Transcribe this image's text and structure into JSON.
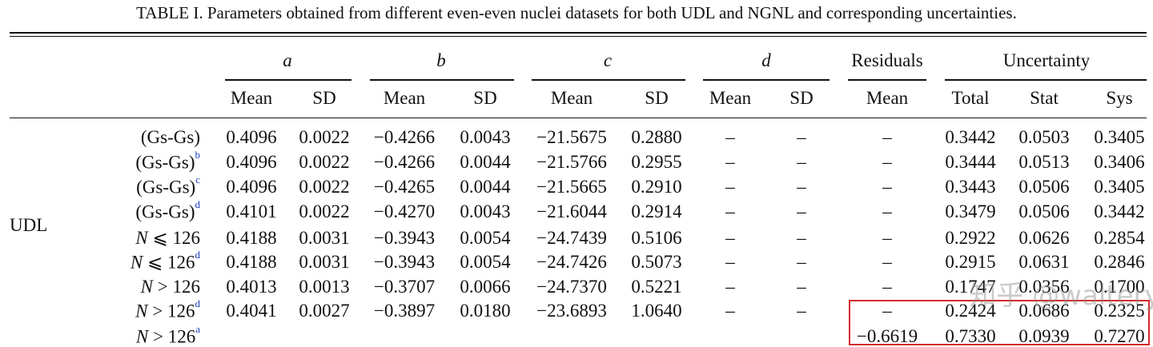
{
  "caption": "TABLE I.  Parameters obtained from different even-even nuclei datasets for both UDL and NGNL and corresponding uncertainties.",
  "groups": [
    "a",
    "b",
    "c",
    "d",
    "Residuals",
    "Uncertainty"
  ],
  "subheaders": [
    "Mean",
    "SD",
    "Mean",
    "SD",
    "Mean",
    "SD",
    "Mean",
    "SD",
    "Mean",
    "Total",
    "Stat",
    "Sys"
  ],
  "section_label": "UDL",
  "rows": [
    {
      "label": "(Gs-Gs)",
      "sup": "",
      "cells": [
        "0.4096",
        "0.0022",
        "−0.4266",
        "0.0043",
        "−21.5675",
        "0.2880",
        "–",
        "–",
        "–",
        "0.3442",
        "0.0503",
        "0.3405"
      ]
    },
    {
      "label": "(Gs-Gs)",
      "sup": "b",
      "cells": [
        "0.4096",
        "0.0022",
        "−0.4266",
        "0.0044",
        "−21.5766",
        "0.2955",
        "–",
        "–",
        "–",
        "0.3444",
        "0.0513",
        "0.3406"
      ]
    },
    {
      "label": "(Gs-Gs)",
      "sup": "c",
      "cells": [
        "0.4096",
        "0.0022",
        "−0.4265",
        "0.0044",
        "−21.5665",
        "0.2910",
        "–",
        "–",
        "–",
        "0.3443",
        "0.0506",
        "0.3405"
      ]
    },
    {
      "label": "(Gs-Gs)",
      "sup": "d",
      "cells": [
        "0.4101",
        "0.0022",
        "−0.4270",
        "0.0043",
        "−21.6044",
        "0.2914",
        "–",
        "–",
        "–",
        "0.3479",
        "0.0506",
        "0.3442"
      ]
    },
    {
      "label": "N ⩽ 126",
      "sup": "",
      "cells": [
        "0.4188",
        "0.0031",
        "−0.3943",
        "0.0054",
        "−24.7439",
        "0.5106",
        "–",
        "–",
        "–",
        "0.2922",
        "0.0626",
        "0.2854"
      ]
    },
    {
      "label": "N ⩽ 126",
      "sup": "d",
      "cells": [
        "0.4188",
        "0.0031",
        "−0.3943",
        "0.0054",
        "−24.7426",
        "0.5073",
        "–",
        "–",
        "–",
        "0.2915",
        "0.0631",
        "0.2846"
      ]
    },
    {
      "label": "N > 126",
      "sup": "",
      "cells": [
        "0.4013",
        "0.0013",
        "−0.3707",
        "0.0066",
        "−24.7370",
        "0.5221",
        "–",
        "–",
        "–",
        "0.1747",
        "0.0356",
        "0.1700"
      ]
    },
    {
      "label": "N > 126",
      "sup": "d",
      "cells": [
        "0.4041",
        "0.0027",
        "−0.3897",
        "0.0180",
        "−23.6893",
        "1.0640",
        "–",
        "–",
        "–",
        "0.2424",
        "0.0686",
        "0.2325"
      ]
    },
    {
      "label": "N > 126",
      "sup": "a",
      "cells": [
        "",
        "",
        "",
        "",
        "",
        "",
        "",
        "",
        "−0.6619",
        "0.7330",
        "0.0939",
        "0.7270"
      ]
    }
  ],
  "watermark": "知乎 @waltery",
  "highlight_color": "#d42a2a"
}
